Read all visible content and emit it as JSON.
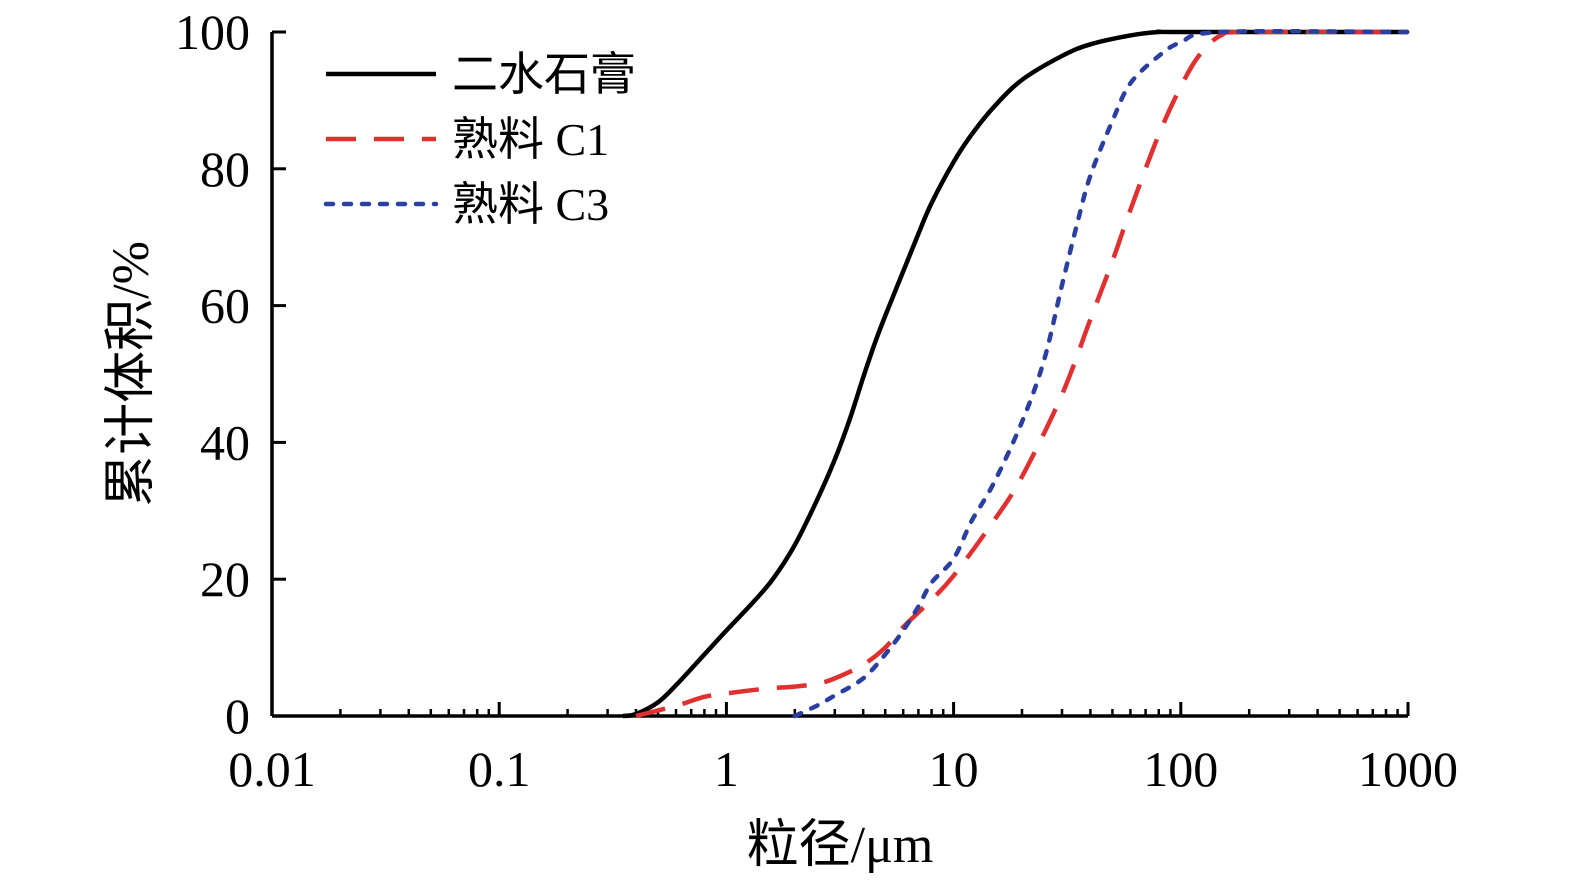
{
  "chart_data": {
    "type": "line",
    "title": "",
    "xlabel": "粒径/μm",
    "ylabel": "累计体积/%",
    "xscale": "log",
    "xlim": [
      0.01,
      1000
    ],
    "ylim": [
      0,
      100
    ],
    "x_tick_labels": [
      "0.01",
      "0.1",
      "1",
      "10",
      "100",
      "1000"
    ],
    "y_tick_labels": [
      "0",
      "20",
      "40",
      "60",
      "80",
      "100"
    ],
    "x_ticks": [
      0.01,
      0.1,
      1,
      10,
      100,
      1000
    ],
    "y_ticks": [
      0,
      20,
      40,
      60,
      80,
      100
    ],
    "grid": false,
    "legend_position": "top-left",
    "series": [
      {
        "name": "二水石膏",
        "color": "#000000",
        "line_style": "solid",
        "points": [
          [
            0.35,
            0
          ],
          [
            0.4,
            0.3
          ],
          [
            0.5,
            2
          ],
          [
            0.6,
            4.5
          ],
          [
            0.8,
            9
          ],
          [
            1.0,
            12.5
          ],
          [
            1.3,
            16.5
          ],
          [
            1.6,
            20
          ],
          [
            2.0,
            25
          ],
          [
            2.5,
            31.5
          ],
          [
            3.0,
            37.5
          ],
          [
            3.5,
            43.5
          ],
          [
            4.0,
            49.5
          ],
          [
            4.5,
            54.5
          ],
          [
            5.0,
            58.5
          ],
          [
            6.0,
            65
          ],
          [
            7.0,
            70.5
          ],
          [
            8.0,
            75
          ],
          [
            10,
            81
          ],
          [
            12,
            85
          ],
          [
            15,
            89
          ],
          [
            20,
            93
          ],
          [
            30,
            96.5
          ],
          [
            40,
            98.2
          ],
          [
            60,
            99.5
          ],
          [
            80,
            100
          ],
          [
            100,
            100
          ],
          [
            1000,
            100
          ]
        ]
      },
      {
        "name": "熟料 C1",
        "color": "#e03030",
        "line_style": "dashed",
        "points": [
          [
            0.4,
            0
          ],
          [
            0.6,
            1.5
          ],
          [
            0.8,
            2.8
          ],
          [
            1.0,
            3.3
          ],
          [
            1.5,
            4
          ],
          [
            2.0,
            4.3
          ],
          [
            2.5,
            4.7
          ],
          [
            3.0,
            5.5
          ],
          [
            4.0,
            7.5
          ],
          [
            5.0,
            10
          ],
          [
            6.0,
            13
          ],
          [
            8.0,
            17
          ],
          [
            10,
            20.5
          ],
          [
            15,
            28.5
          ],
          [
            20,
            35
          ],
          [
            30,
            47
          ],
          [
            40,
            58
          ],
          [
            50,
            66.5
          ],
          [
            60,
            74
          ],
          [
            80,
            85
          ],
          [
            100,
            92
          ],
          [
            120,
            96.5
          ],
          [
            150,
            99.5
          ],
          [
            200,
            100
          ],
          [
            1000,
            100
          ]
        ]
      },
      {
        "name": "熟料 C3",
        "color": "#2b3fa0",
        "line_style": "dotted",
        "points": [
          [
            2.0,
            0
          ],
          [
            2.5,
            1.5
          ],
          [
            3.0,
            3
          ],
          [
            4.0,
            5.5
          ],
          [
            5.0,
            9
          ],
          [
            6.0,
            12.5
          ],
          [
            7.0,
            16
          ],
          [
            8.0,
            19.5
          ],
          [
            10,
            23
          ],
          [
            12,
            28.5
          ],
          [
            15,
            34
          ],
          [
            20,
            43
          ],
          [
            25,
            52
          ],
          [
            30,
            63
          ],
          [
            35,
            72
          ],
          [
            40,
            79
          ],
          [
            50,
            87
          ],
          [
            60,
            92.5
          ],
          [
            80,
            96.5
          ],
          [
            100,
            98.5
          ],
          [
            150,
            100
          ],
          [
            1000,
            100
          ]
        ]
      }
    ]
  }
}
